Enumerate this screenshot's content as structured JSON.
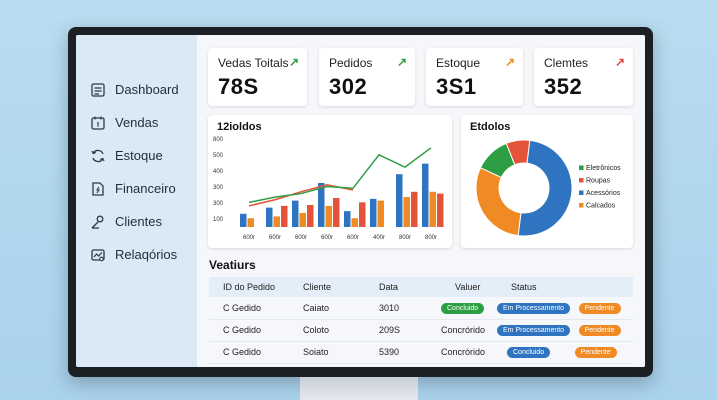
{
  "sidebar": {
    "items": [
      {
        "label": "Dashboard",
        "icon": "dashboard-icon"
      },
      {
        "label": "Vendas",
        "icon": "calendar-icon"
      },
      {
        "label": "Estoque",
        "icon": "refresh-icon"
      },
      {
        "label": "Financeiro",
        "icon": "document-icon"
      },
      {
        "label": "Clientes",
        "icon": "user-icon"
      },
      {
        "label": "Relaqórios",
        "icon": "report-icon"
      }
    ]
  },
  "kpis": [
    {
      "label": "Vedas Toitals",
      "value": "78S",
      "arrow": "↗",
      "arrow_color": "#2e9e44"
    },
    {
      "label": "Pedidos",
      "value": "302",
      "arrow": "↗",
      "arrow_color": "#2e9e44"
    },
    {
      "label": "Estoque",
      "value": "3S1",
      "arrow": "↗",
      "arrow_color": "#f08c1a"
    },
    {
      "label": "Clemtes",
      "value": "352",
      "arrow": "↗",
      "arrow_color": "#e04a3a"
    }
  ],
  "bar_card": {
    "title": "12ioldos"
  },
  "donut_card": {
    "title": "Etdolos"
  },
  "chart_data": [
    {
      "type": "bar",
      "title": "12ioldos",
      "categories": [
        "600r",
        "600r",
        "600r",
        "600r",
        "600r",
        "400r",
        "800r",
        "800r"
      ],
      "y_tick_labels": [
        "800",
        "500",
        "400",
        "300",
        "300",
        "100"
      ],
      "ylim": [
        0,
        100
      ],
      "series": [
        {
          "color": "#2f74c0",
          "values": [
            15,
            22,
            30,
            50,
            18,
            32,
            60,
            72
          ]
        },
        {
          "color": "#f08a24",
          "values": [
            10,
            12,
            16,
            24,
            10,
            30,
            34,
            40
          ]
        },
        {
          "color": "#e4533a",
          "values": [
            0,
            24,
            25,
            33,
            28,
            0,
            40,
            38
          ]
        }
      ],
      "line_series": [
        {
          "color": "#e4533a",
          "values": [
            24,
            31,
            40,
            48,
            42,
            null,
            null,
            null
          ]
        },
        {
          "color": "#2e9e44",
          "values": [
            28,
            34,
            38,
            46,
            44,
            82,
            68,
            90
          ]
        }
      ]
    },
    {
      "type": "pie",
      "title": "Etdolos",
      "legend": "right",
      "slices": [
        {
          "name": "Eletrônicos",
          "value": 12,
          "color": "#2e9e44"
        },
        {
          "name": "Roupas",
          "value": 8,
          "color": "#e4533a"
        },
        {
          "name": "Acessórios",
          "value": 50,
          "color": "#2f74c0"
        },
        {
          "name": "Calcados",
          "value": 30,
          "color": "#f08a24"
        }
      ]
    }
  ],
  "legend_order": [
    "Eletrônicos",
    "Roupas",
    "Acessórios",
    "Calcados"
  ],
  "table": {
    "title": "Veatiurs",
    "headers": [
      "ID do Pedido",
      "Cliente",
      "Data",
      "Valuer",
      "Status"
    ],
    "rows": [
      {
        "id": "C Gedido",
        "cliente": "Caiato",
        "data": "3010",
        "valor_badge": "Concluido",
        "valor_color": "#2e9e44",
        "status1": "Em Processamento",
        "status1_color": "#2f74c0",
        "status2": "Pendente",
        "status2_color": "#f08a24"
      },
      {
        "id": "C Gedido",
        "cliente": "Coloto",
        "data": "209S",
        "valor": "Concrórido",
        "status1": "Em Processamento",
        "status1_color": "#2f74c0",
        "status2": "Pendente",
        "status2_color": "#f08a24"
      },
      {
        "id": "C Gedido",
        "cliente": "Soiato",
        "data": "5390",
        "valor": "Concrórido",
        "status1": "Concluido",
        "status1_color": "#2f74c0",
        "status2": "Pendente",
        "status2_color": "#f08a24"
      }
    ]
  }
}
